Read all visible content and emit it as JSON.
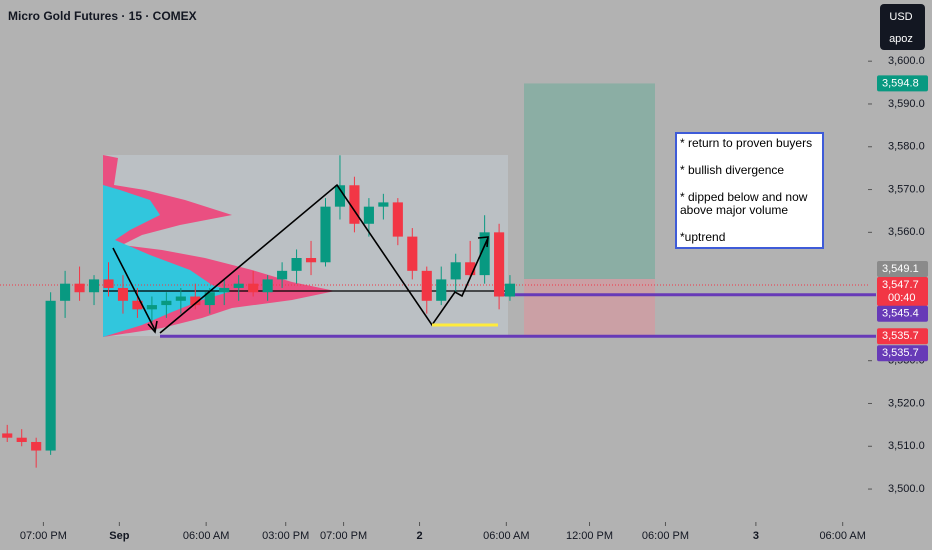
{
  "chart_data": {
    "type": "candlestick",
    "title": "Micro Gold Futures · 15 · COMEX",
    "currency": "USD",
    "scale_button": "apoz",
    "x": [
      2,
      6,
      10,
      14,
      18,
      22,
      26,
      30,
      34,
      38,
      42,
      46,
      50,
      54,
      58,
      62,
      66,
      70,
      74,
      78,
      82,
      86,
      90,
      94,
      98,
      102,
      106,
      110,
      114,
      118,
      122,
      126,
      130,
      134,
      138,
      141
    ],
    "open": [
      3513,
      3512,
      3511,
      3509,
      3544,
      3548,
      3546,
      3549,
      3547,
      3544,
      3542,
      3543,
      3544,
      3545,
      3543,
      3546,
      3547,
      3548,
      3546,
      3549,
      3551,
      3554,
      3553,
      3566,
      3571,
      3562,
      3566,
      3567,
      3559,
      3551,
      3544,
      3549,
      3553,
      3550,
      3560,
      3545
    ],
    "high": [
      3515,
      3514,
      3512,
      3546,
      3551,
      3552,
      3550,
      3553,
      3550,
      3547,
      3545,
      3546,
      3547,
      3548,
      3547,
      3549,
      3550,
      3551,
      3550,
      3553,
      3556,
      3558,
      3568,
      3578,
      3573,
      3568,
      3569,
      3568,
      3561,
      3552,
      3552,
      3555,
      3558,
      3564,
      3562,
      3550
    ],
    "low": [
      3511,
      3510,
      3505,
      3508,
      3540,
      3544,
      3543,
      3545,
      3541,
      3540,
      3539,
      3540,
      3541,
      3542,
      3541,
      3543,
      3544,
      3545,
      3544,
      3547,
      3548,
      3550,
      3552,
      3563,
      3560,
      3559,
      3563,
      3557,
      3549,
      3541,
      3543,
      3546,
      3549,
      3548,
      3542,
      3544
    ],
    "close": [
      3512,
      3511,
      3509,
      3544,
      3548,
      3546,
      3549,
      3547,
      3544,
      3542,
      3543,
      3544,
      3545,
      3543,
      3546,
      3547,
      3548,
      3546,
      3549,
      3551,
      3554,
      3553,
      3566,
      3571,
      3562,
      3566,
      3567,
      3559,
      3551,
      3544,
      3549,
      3553,
      3550,
      3560,
      3545,
      3548
    ],
    "up_color": "#089981",
    "down_color": "#f23645",
    "xlim": [
      0,
      240
    ],
    "xticks": [
      {
        "value": 12,
        "label": "07:00 PM"
      },
      {
        "value": 33,
        "label": "Sep"
      },
      {
        "value": 57,
        "label": "06:00 AM"
      },
      {
        "value": 79,
        "label": "03:00 PM"
      },
      {
        "value": 95,
        "label": "07:00 PM"
      },
      {
        "value": 116,
        "label": "2"
      },
      {
        "value": 140,
        "label": "06:00 AM"
      },
      {
        "value": 163,
        "label": "12:00 PM"
      },
      {
        "value": 184,
        "label": "06:00 PM"
      },
      {
        "value": 209,
        "label": "3"
      },
      {
        "value": 233,
        "label": "06:00 AM"
      }
    ],
    "ylim": [
      3492.3,
      3614.3
    ],
    "yticks": [
      {
        "value": 3500,
        "label": "3,500.0"
      },
      {
        "value": 3510,
        "label": "3,510.0"
      },
      {
        "value": 3520,
        "label": "3,520.0"
      },
      {
        "value": 3530,
        "label": "3,530.0"
      },
      {
        "value": 3560,
        "label": "3,560.0"
      },
      {
        "value": 3570,
        "label": "3,570.0"
      },
      {
        "value": 3580,
        "label": "3,580.0"
      },
      {
        "value": 3590,
        "label": "3,590.0"
      },
      {
        "value": 3600,
        "label": "3,600.0"
      }
    ],
    "price_labels": [
      {
        "value": 3594.8,
        "label": "3,594.8",
        "color": "#089981"
      },
      {
        "value": 3549.1,
        "label": "3,549.1",
        "color": "#8a8a8a"
      },
      {
        "value": 3547.7,
        "label": "3,547.7",
        "color": "#f23645",
        "countdown": "00:40"
      },
      {
        "value": 3545.4,
        "label": "3,545.4",
        "color": "#673ab7"
      },
      {
        "value": 3535.7,
        "label": "3,535.7",
        "color": "#f23645"
      },
      {
        "value": 3535.7,
        "label": "3,535.7",
        "color": "#673ab7"
      }
    ],
    "notes": [
      "* return to proven buyers",
      "* bullish divergence",
      "* dipped below and now",
      "above major volume",
      "*uptrend"
    ]
  }
}
